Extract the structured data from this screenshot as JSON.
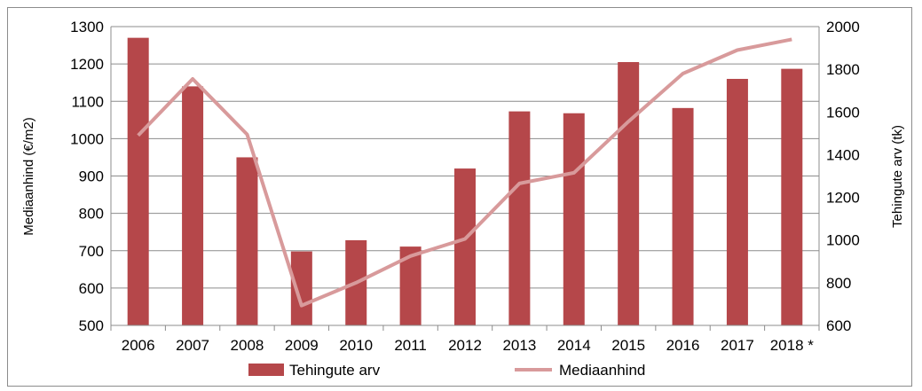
{
  "chart_data": {
    "type": "bar",
    "categories": [
      "2006",
      "2007",
      "2008",
      "2009",
      "2010",
      "2011",
      "2012",
      "2013",
      "2014",
      "2015",
      "2016",
      "2017",
      "2018 *"
    ],
    "y_left": {
      "label": "Mediaanhind (€/m2)",
      "ylim": [
        500,
        1300
      ],
      "ticks": [
        500,
        600,
        700,
        800,
        900,
        1000,
        1100,
        1200,
        1300
      ]
    },
    "y_right": {
      "label": "Tehingute arv (tk)",
      "ylim": [
        600,
        2000
      ],
      "ticks": [
        600,
        800,
        1000,
        1200,
        1400,
        1600,
        1800,
        2000
      ]
    },
    "series": [
      {
        "name": "Tehingute arv",
        "type": "bar",
        "axis": "left",
        "color": "#b5474a",
        "values": [
          1270,
          1140,
          950,
          698,
          728,
          711,
          920,
          1073,
          1068,
          1205,
          1082,
          1160,
          1187
        ]
      },
      {
        "name": "Mediaanhind",
        "type": "line",
        "axis": "right",
        "color": "#d89a9b",
        "values": [
          1490,
          1755,
          1495,
          693,
          800,
          925,
          1005,
          1265,
          1315,
          1555,
          1780,
          1890,
          1940
        ]
      }
    ],
    "grid": true,
    "legend": "bottom"
  }
}
